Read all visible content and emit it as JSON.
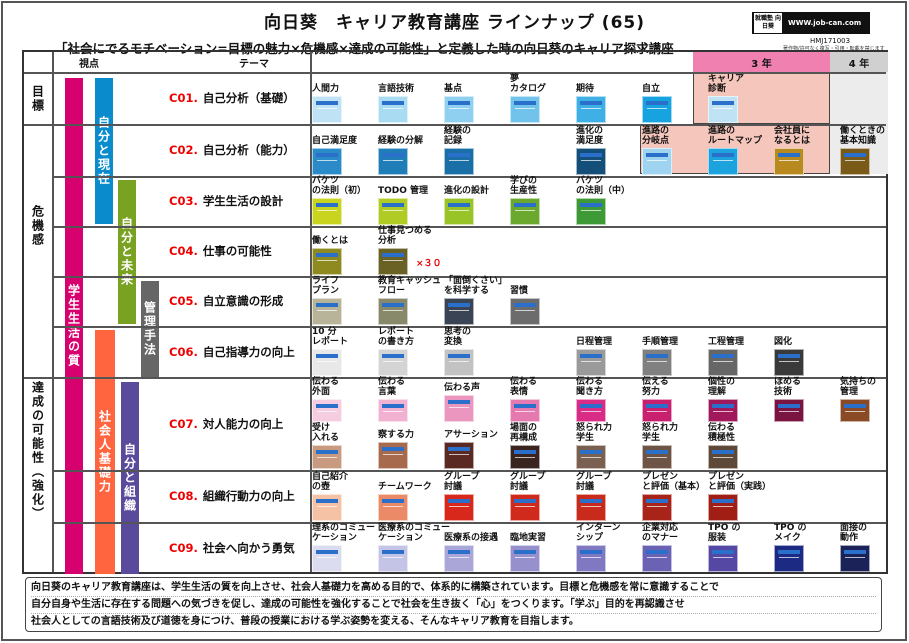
{
  "header": {
    "title": "向日葵　キャリア教育講座 ラインナップ (65)",
    "subtitle": "「社会にでるモチベーション=目標の魅力×危機感×達成の可能性」と定義した時の向日葵のキャリア探求講座",
    "logo_seal": "就職塾 向日葵",
    "logo_url": "WWW.job-can.com",
    "code": "HMJ171003",
    "copyright": "著作物/許可なく複写・引用・転載を禁じます"
  },
  "columns": {
    "viewpoint": "視点",
    "theme": "テーマ",
    "year3": "3 年",
    "year4": "4 年"
  },
  "categories": [
    "目標",
    "危機感",
    "達成の可能性（強化）"
  ],
  "bars": [
    "学生生活の質",
    "自分と現在",
    "自分と未来",
    "管理手法",
    "社会人基礎力",
    "自分と組織"
  ],
  "colors": {
    "year3_header": "#f080b0",
    "year3_zone": "#f4c6bc",
    "year4_zone": "#ececec",
    "code": "#e00000"
  },
  "rows": [
    {
      "code": "C01.",
      "theme": "自己分析（基礎）",
      "items": [
        {
          "label": "人間力",
          "color": "#bfe3f5"
        },
        {
          "label": "言語技術",
          "color": "#a9dbf3"
        },
        {
          "label": "基点",
          "color": "#8fd0f0"
        },
        {
          "label": "夢\nカタログ",
          "color": "#72c3ec"
        },
        {
          "label": "期待",
          "color": "#3fb0e6"
        },
        {
          "label": "自立",
          "color": "#16a3df"
        },
        {
          "label": "キャリア\n診断",
          "color": "#bfe3f5"
        }
      ]
    },
    {
      "code": "C02.",
      "theme": "自己分析（能力）",
      "items": [
        {
          "label": "自己満足度",
          "color": "#2a8bc8"
        },
        {
          "label": "経験の分解",
          "color": "#1f7db8"
        },
        {
          "label": "経験の\n記録",
          "color": "#1a6fa6"
        },
        null,
        {
          "label": "進化の\n満足度",
          "color": "#144f7a"
        },
        {
          "label": "進路の\n分岐点",
          "color": "#9fd4f0"
        },
        {
          "label": "進路の\nルートマップ",
          "color": "#1ca2dc"
        },
        {
          "label": "会社員に\nなるとは",
          "color": "#b8891e"
        },
        {
          "label": "働くときの\n基本知識",
          "color": "#7a5a18"
        }
      ]
    },
    {
      "code": "C03.",
      "theme": "学生生活の設計",
      "items": [
        {
          "label": "バケツ\nの法則（初）",
          "color": "#c8d41e"
        },
        {
          "label": "TODO 管理",
          "color": "#b0cc24"
        },
        {
          "label": "進化の設計",
          "color": "#98c428"
        },
        {
          "label": "学びの\n生産性",
          "color": "#6aa82e"
        },
        {
          "label": "バケツ\nの法則（中）",
          "color": "#3d9a36"
        }
      ]
    },
    {
      "code": "C04.",
      "theme": "仕事の可能性",
      "x30": "×３０",
      "items": [
        {
          "label": "働くとは",
          "color": "#8e8a20"
        },
        {
          "label": "仕事見つめる\n分析",
          "color": "#6a6224"
        }
      ]
    },
    {
      "code": "C05.",
      "theme": "自立意識の形成",
      "items": [
        {
          "label": "ライフ\nプラン",
          "color": "#b8b49a"
        },
        {
          "label": "教育キャッシュ\nフロー",
          "color": "#88886a"
        },
        {
          "label": "「面倒くさい」\nを科学する",
          "color": "#3a4454"
        },
        {
          "label": "習慣",
          "color": "#6c6c6c"
        }
      ]
    },
    {
      "code": "C06.",
      "theme": "自己指導力の向上",
      "items": [
        {
          "label": "10 分\nレポート",
          "color": "#e8e8e8"
        },
        {
          "label": "レポート\nの書き方",
          "color": "#d4d4d4"
        },
        {
          "label": "思考の\n変換",
          "color": "#c2c2c2"
        },
        null,
        {
          "label": "日程管理",
          "color": "#9a9a9a"
        },
        {
          "label": "手順管理",
          "color": "#808080"
        },
        {
          "label": "工程管理",
          "color": "#666"
        },
        {
          "label": "図化",
          "color": "#3a3a3a"
        }
      ]
    },
    {
      "code": "C07.",
      "theme": "対人能力の向上",
      "items": [
        {
          "label": "伝わる\n外面",
          "color": "#f6cce0"
        },
        {
          "label": "伝わる\n言葉",
          "color": "#f0b2d0"
        },
        {
          "label": "伝わる声",
          "color": "#ea96bf"
        },
        {
          "label": "伝わる\n表情",
          "color": "#e47ab0"
        },
        {
          "label": "伝わる\n聞き方",
          "color": "#d82c86"
        },
        {
          "label": "伝える\n努力",
          "color": "#c8206f"
        },
        {
          "label": "個性の\n理解",
          "color": "#a0195a"
        },
        {
          "label": "ほめる\n技術",
          "color": "#7a1440"
        },
        {
          "label": "気持ちの\n管理",
          "color": "#8a4a26"
        }
      ],
      "items2": [
        {
          "label": "受け\n入れる",
          "color": "#c89a80"
        },
        {
          "label": "察する力",
          "color": "#a86a4c"
        },
        {
          "label": "アサーション",
          "color": "#5a2a22"
        },
        {
          "label": "場面の\n再構成",
          "color": "#3a2420"
        },
        {
          "label": "怒られ力\n学生",
          "color": "#7a6050"
        },
        {
          "label": "怒られ力\n学生",
          "color": "#6e5444"
        },
        {
          "label": "伝わる\n積極性",
          "color": "#5e4838"
        }
      ]
    },
    {
      "code": "C08.",
      "theme": "組織行動力の向上",
      "items": [
        {
          "label": "自己紹介\nの壺",
          "color": "#f6c2a6"
        },
        {
          "label": "チームワーク",
          "color": "#ea8a66"
        },
        {
          "label": "グループ\n討議",
          "color": "#d8281c"
        },
        {
          "label": "グループ\n討議",
          "color": "#d02a1c"
        },
        {
          "label": "グループ\n討議",
          "color": "#c82a1c"
        },
        {
          "label": "プレゼン\nと評価（基本）",
          "color": "#a82418"
        },
        {
          "label": "プレゼン\nと評価（実践）",
          "color": "#a01e14"
        }
      ]
    },
    {
      "code": "C09.",
      "theme": "社会へ向かう勇気",
      "items": [
        {
          "label": "理系のコミュー\nケーション",
          "color": "#dcdcf0"
        },
        {
          "label": "医療系のコミュー\nケーション",
          "color": "#c4c4e6"
        },
        {
          "label": "医療系の接遇",
          "color": "#aaa6d8"
        },
        {
          "label": "臨地実習",
          "color": "#9690cc"
        },
        {
          "label": "インターン\nシップ",
          "color": "#8078c0"
        },
        {
          "label": "企業対応\nのマナー",
          "color": "#6c62b4"
        },
        {
          "label": "TPO の\n服装",
          "color": "#5448a4"
        },
        {
          "label": "TPO の\nメイク",
          "color": "#1c2a84"
        },
        {
          "label": "面接の\n動作",
          "color": "#1a2258"
        }
      ]
    }
  ],
  "footer": [
    "向日葵のキャリア教育講座は、学生生活の質を向上させ、社会人基礎力を高める目的で、体系的に構築されています。目標と危機感を常に意識することで",
    "自分自身や生活に存在する問題への気づきを促し、達成の可能性を強化することで社会を生き抜く「心」をつくります。「学ぶ」目的を再認識させ",
    "社会人としての言語技術及び道徳を身につけ、普段の授業における学ぶ姿勢を変える、そんなキャリア教育を目指します。"
  ]
}
